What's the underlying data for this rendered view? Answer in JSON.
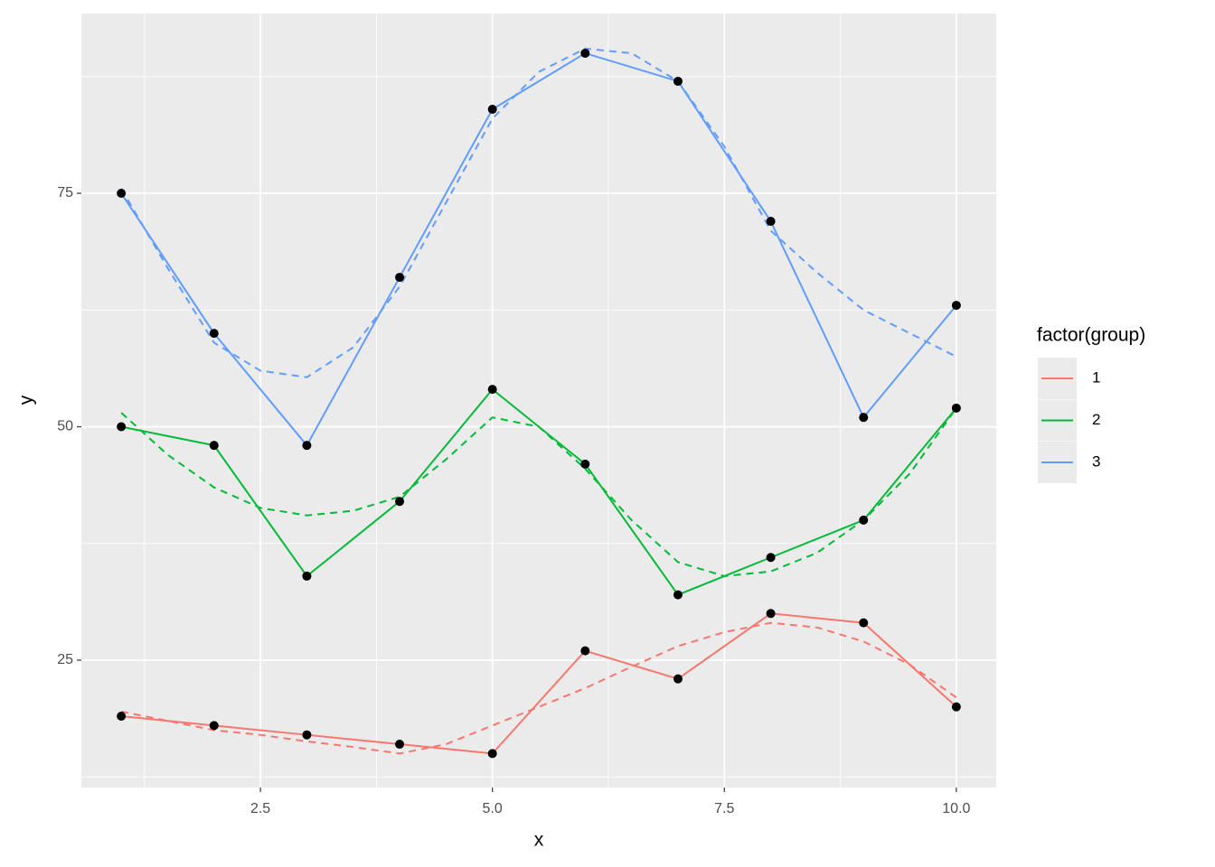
{
  "chart_data": {
    "type": "line",
    "x_label": "x",
    "y_label": "y",
    "x": [
      1,
      2,
      3,
      4,
      5,
      6,
      7,
      8,
      9,
      10
    ],
    "smooth_x": [
      1,
      1.5,
      2,
      2.5,
      3,
      3.5,
      4,
      4.5,
      5,
      5.5,
      6,
      6.5,
      7,
      7.5,
      8,
      8.5,
      9,
      9.5,
      10
    ],
    "series": [
      {
        "name": "1",
        "color": "#F8766D",
        "values": [
          19,
          18,
          17,
          16,
          15,
          26,
          23,
          30,
          29,
          20
        ],
        "smooth_values": [
          19.5,
          18.5,
          17.5,
          17,
          16.3,
          15.7,
          15,
          16,
          18,
          20,
          22,
          24.3,
          26.5,
          28,
          29,
          28.5,
          27,
          24.5,
          21
        ]
      },
      {
        "name": "2",
        "color": "#00BA38",
        "values": [
          50,
          48,
          34,
          42,
          54,
          46,
          32,
          36,
          40,
          52
        ],
        "smooth_values": [
          51.5,
          47,
          43.5,
          41.3,
          40.5,
          41,
          42.5,
          46.5,
          51,
          50,
          45.5,
          40,
          35.5,
          34,
          34.5,
          36.5,
          40,
          45,
          52
        ]
      },
      {
        "name": "3",
        "color": "#619CFF",
        "values": [
          75,
          60,
          48,
          66,
          84,
          90,
          87,
          72,
          51,
          63
        ],
        "smooth_values": [
          75.5,
          67,
          59,
          56,
          55.3,
          58.5,
          65,
          74,
          83,
          88,
          90.5,
          90,
          87,
          80,
          71,
          66.5,
          62.5,
          60,
          57.5
        ]
      }
    ],
    "point_color": "#000000",
    "xlim": [
      0.57,
      10.43
    ],
    "ylim": [
      11.36,
      94.25
    ],
    "xticks": [
      2.5,
      {
        "value": 5,
        "label": "5.0"
      },
      7.5,
      {
        "value": 10,
        "label": "10.0"
      }
    ],
    "yticks": [
      25,
      50,
      75
    ],
    "grid": true,
    "legend_title": "factor(group)",
    "legend_position": "right"
  }
}
